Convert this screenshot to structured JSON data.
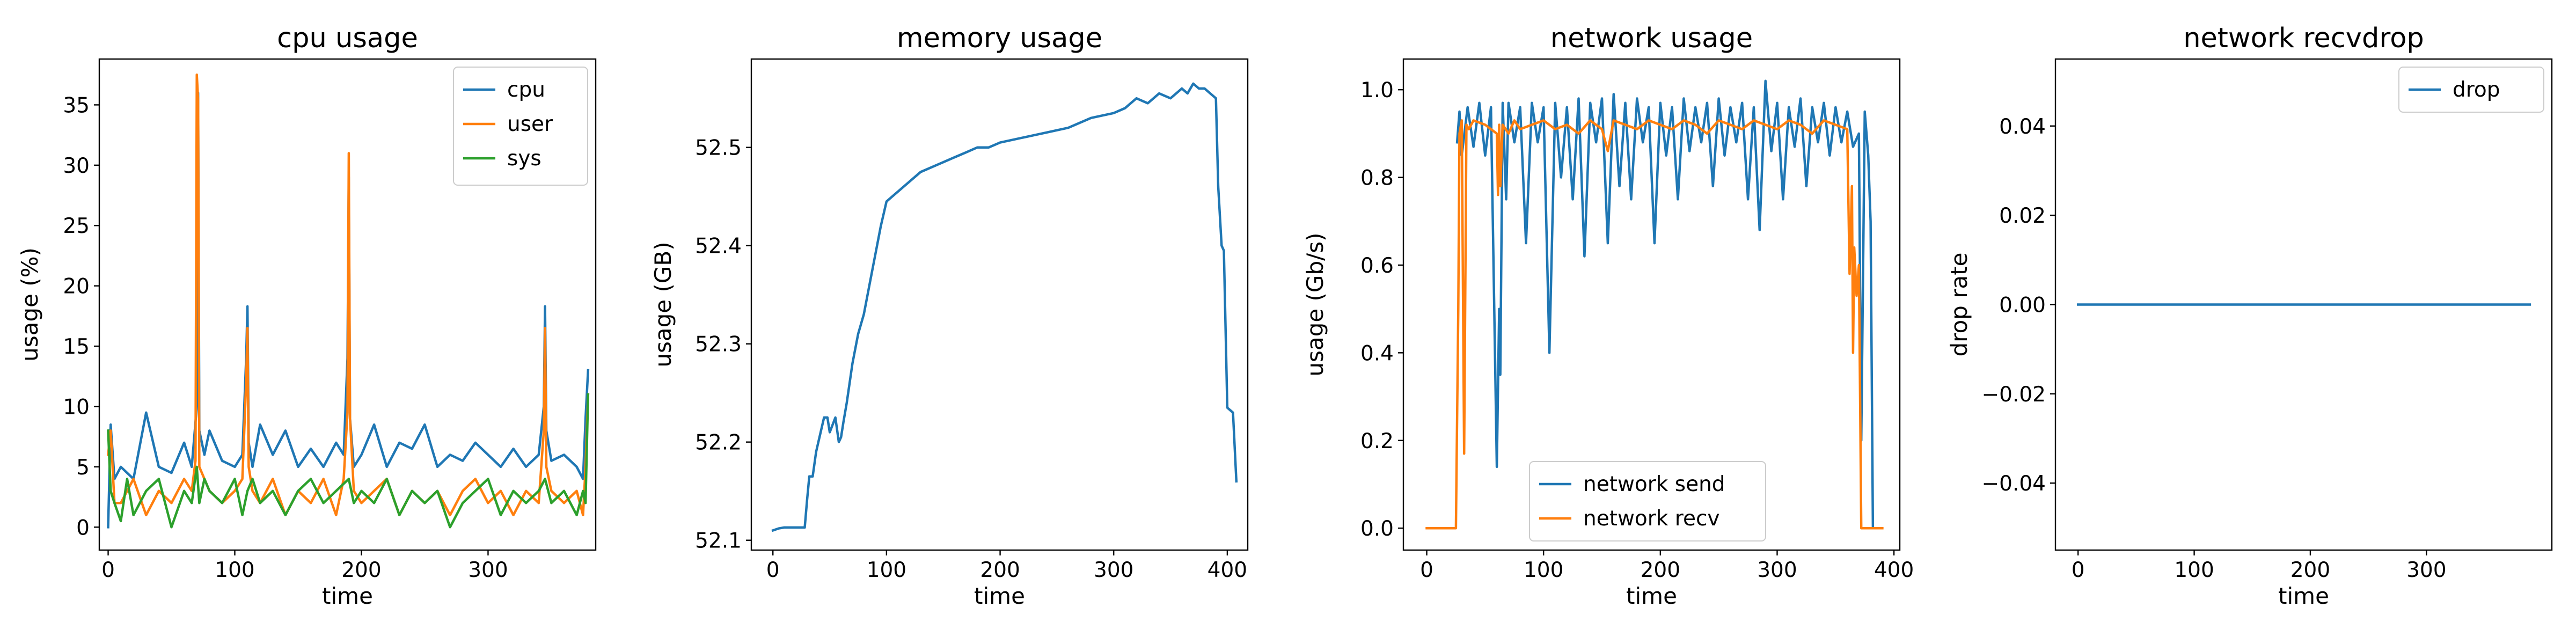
{
  "chart_data": [
    {
      "type": "line",
      "title": "cpu usage",
      "xlabel": "time",
      "ylabel": "usage (%)",
      "xlim": [
        -7,
        385
      ],
      "ylim": [
        -1.9,
        38.8
      ],
      "xticks": [
        0,
        100,
        200,
        300
      ],
      "yticks": [
        0,
        5,
        10,
        15,
        20,
        25,
        30,
        35
      ],
      "legend": "top-right",
      "colors": {
        "cpu": "#1f77b4",
        "user": "#ff7f0e",
        "sys": "#2ca02c"
      },
      "series": [
        {
          "name": "cpu",
          "x": [
            0,
            2,
            5,
            10,
            20,
            30,
            40,
            50,
            60,
            66,
            70,
            71,
            72,
            76,
            80,
            90,
            100,
            106,
            109,
            110,
            111,
            114,
            120,
            130,
            140,
            150,
            160,
            170,
            180,
            186,
            189,
            190,
            191,
            194,
            200,
            210,
            220,
            230,
            240,
            250,
            260,
            270,
            280,
            290,
            300,
            310,
            320,
            330,
            340,
            344,
            345,
            346,
            350,
            360,
            370,
            375,
            377,
            379
          ],
          "y": [
            0,
            8.5,
            4,
            5,
            4,
            9.5,
            5,
            4.5,
            7,
            5,
            10,
            36,
            8,
            6,
            8,
            5.5,
            5,
            6,
            14,
            18.3,
            7,
            5,
            8.5,
            6,
            8,
            5,
            6.5,
            5,
            7,
            6,
            14,
            29,
            9,
            5,
            6,
            8.5,
            5,
            7,
            6.5,
            8.5,
            5,
            6,
            5.5,
            7,
            6,
            5,
            6.5,
            5,
            6,
            10,
            18.3,
            8,
            5.5,
            6,
            5,
            4,
            9,
            13
          ]
        },
        {
          "name": "user",
          "x": [
            0,
            2,
            5,
            10,
            20,
            30,
            40,
            50,
            60,
            66,
            69,
            70,
            71,
            72,
            76,
            80,
            90,
            100,
            106,
            109,
            110,
            111,
            114,
            120,
            130,
            140,
            150,
            160,
            170,
            180,
            186,
            189,
            190,
            191,
            194,
            200,
            210,
            220,
            230,
            240,
            250,
            260,
            270,
            280,
            290,
            300,
            310,
            320,
            330,
            340,
            344,
            345,
            346,
            350,
            360,
            370,
            375,
            377,
            379
          ],
          "y": [
            6,
            8,
            2,
            2,
            4,
            1,
            3,
            2,
            4,
            3,
            5.5,
            37.5,
            35.5,
            5,
            4,
            3,
            2,
            3,
            4,
            12,
            16.5,
            5,
            3,
            2,
            4,
            1,
            3,
            2,
            4,
            1,
            4,
            9.5,
            31,
            9,
            3,
            2,
            3,
            4,
            1,
            3,
            2,
            3,
            1,
            3,
            4,
            2,
            3,
            1,
            3,
            2,
            8,
            16.5,
            5,
            3,
            2,
            3,
            1,
            5,
            11
          ]
        },
        {
          "name": "sys",
          "x": [
            0,
            2,
            5,
            10,
            15,
            20,
            30,
            40,
            50,
            60,
            66,
            70,
            72,
            76,
            80,
            90,
            100,
            106,
            110,
            114,
            120,
            130,
            140,
            150,
            160,
            170,
            180,
            190,
            194,
            200,
            210,
            220,
            230,
            240,
            250,
            260,
            270,
            280,
            290,
            300,
            310,
            320,
            330,
            340,
            345,
            350,
            360,
            370,
            375,
            377,
            379
          ],
          "y": [
            8,
            3,
            2,
            0.5,
            4,
            1,
            3,
            4,
            0,
            3,
            2,
            5,
            2,
            4,
            3,
            2,
            4,
            1,
            3,
            4,
            2,
            3,
            1,
            3,
            4,
            2,
            3,
            4,
            2,
            3,
            2,
            4,
            1,
            3,
            2,
            3,
            0,
            2,
            3,
            4,
            1,
            3,
            2,
            3,
            4,
            2,
            3,
            1,
            3,
            2,
            11
          ]
        }
      ]
    },
    {
      "type": "line",
      "title": "memory usage",
      "xlabel": "time",
      "ylabel": "usage (GB)",
      "xlim": [
        -19,
        418
      ],
      "ylim": [
        52.09,
        52.59
      ],
      "xticks": [
        0,
        100,
        200,
        300,
        400
      ],
      "yticks": [
        52.1,
        52.2,
        52.3,
        52.4,
        52.5
      ],
      "legend": "none",
      "colors": {
        "memory": "#1f77b4"
      },
      "series": [
        {
          "x": [
            0,
            5,
            10,
            20,
            28,
            30,
            32,
            35,
            38,
            40,
            45,
            48,
            50,
            55,
            58,
            60,
            62,
            65,
            70,
            75,
            80,
            85,
            90,
            95,
            100,
            105,
            110,
            120,
            130,
            140,
            150,
            160,
            170,
            180,
            190,
            200,
            220,
            240,
            260,
            280,
            300,
            310,
            320,
            330,
            340,
            350,
            360,
            365,
            370,
            375,
            380,
            385,
            390,
            392,
            395,
            397,
            400,
            405,
            408
          ],
          "y": [
            52.11,
            52.112,
            52.113,
            52.113,
            52.113,
            52.14,
            52.165,
            52.165,
            52.19,
            52.2,
            52.225,
            52.225,
            52.21,
            52.225,
            52.2,
            52.205,
            52.22,
            52.24,
            52.28,
            52.31,
            52.33,
            52.36,
            52.39,
            52.42,
            52.445,
            52.45,
            52.455,
            52.465,
            52.475,
            52.48,
            52.485,
            52.49,
            52.495,
            52.5,
            52.5,
            52.505,
            52.51,
            52.515,
            52.52,
            52.53,
            52.535,
            52.54,
            52.55,
            52.545,
            52.555,
            52.55,
            52.56,
            52.555,
            52.565,
            52.56,
            52.56,
            52.555,
            52.55,
            52.46,
            52.4,
            52.395,
            52.235,
            52.23,
            52.16
          ]
        }
      ]
    },
    {
      "type": "line",
      "title": "network usage",
      "xlabel": "time",
      "ylabel": "usage (Gb/s)",
      "xlim": [
        -20,
        405
      ],
      "ylim": [
        -0.05,
        1.07
      ],
      "xticks": [
        0,
        100,
        200,
        300,
        400
      ],
      "yticks": [
        0.0,
        0.2,
        0.4,
        0.6,
        0.8,
        1.0
      ],
      "legend": "bottom-center",
      "colors": {
        "network send": "#1f77b4",
        "network recv": "#ff7f0e"
      },
      "series": [
        {
          "name": "network send",
          "x": [
            26,
            28,
            30,
            35,
            40,
            45,
            50,
            55,
            60,
            62,
            63,
            65,
            68,
            70,
            75,
            80,
            85,
            90,
            95,
            100,
            105,
            110,
            115,
            120,
            125,
            130,
            135,
            140,
            145,
            150,
            155,
            160,
            165,
            170,
            175,
            180,
            185,
            190,
            195,
            200,
            205,
            210,
            215,
            220,
            225,
            230,
            235,
            240,
            245,
            250,
            255,
            260,
            265,
            270,
            275,
            280,
            285,
            290,
            295,
            300,
            305,
            310,
            315,
            320,
            325,
            330,
            335,
            340,
            345,
            350,
            355,
            360,
            365,
            370,
            372,
            375,
            378,
            380,
            382
          ],
          "y": [
            0.88,
            0.95,
            0.85,
            0.96,
            0.87,
            0.97,
            0.85,
            0.96,
            0.14,
            0.5,
            0.35,
            0.97,
            0.75,
            0.97,
            0.88,
            0.96,
            0.65,
            0.97,
            0.88,
            0.96,
            0.4,
            0.97,
            0.8,
            0.96,
            0.75,
            0.98,
            0.62,
            0.97,
            0.88,
            0.98,
            0.65,
            0.99,
            0.78,
            0.97,
            0.75,
            0.98,
            0.88,
            0.96,
            0.65,
            0.97,
            0.85,
            0.96,
            0.75,
            0.98,
            0.86,
            0.96,
            0.88,
            0.97,
            0.78,
            0.98,
            0.85,
            0.96,
            0.88,
            0.97,
            0.75,
            0.96,
            0.68,
            1.02,
            0.86,
            0.97,
            0.75,
            0.96,
            0.87,
            0.98,
            0.78,
            0.96,
            0.88,
            0.97,
            0.85,
            0.96,
            0.88,
            0.95,
            0.87,
            0.9,
            0.2,
            0.95,
            0.85,
            0.7,
            0.0
          ]
        },
        {
          "name": "network recv",
          "x": [
            0,
            10,
            20,
            25,
            27,
            28,
            30,
            32,
            34,
            36,
            40,
            50,
            60,
            61,
            62,
            63,
            65,
            70,
            75,
            80,
            90,
            100,
            110,
            120,
            130,
            140,
            150,
            155,
            160,
            170,
            180,
            190,
            200,
            210,
            220,
            230,
            240,
            250,
            260,
            270,
            280,
            290,
            300,
            310,
            320,
            330,
            340,
            350,
            360,
            362,
            364,
            365,
            366,
            368,
            370,
            372,
            375,
            380,
            385,
            390
          ],
          "y": [
            0.0,
            0.0,
            0.0,
            0.0,
            0.5,
            0.9,
            0.93,
            0.17,
            0.92,
            0.91,
            0.93,
            0.92,
            0.9,
            0.76,
            0.92,
            0.78,
            0.92,
            0.9,
            0.93,
            0.91,
            0.92,
            0.93,
            0.91,
            0.92,
            0.9,
            0.93,
            0.91,
            0.86,
            0.93,
            0.92,
            0.91,
            0.93,
            0.92,
            0.91,
            0.93,
            0.92,
            0.9,
            0.93,
            0.92,
            0.91,
            0.93,
            0.92,
            0.91,
            0.93,
            0.92,
            0.9,
            0.93,
            0.92,
            0.91,
            0.58,
            0.78,
            0.4,
            0.64,
            0.53,
            0.6,
            0.0,
            0.0,
            0.0,
            0.0,
            0.0
          ]
        }
      ]
    },
    {
      "type": "line",
      "title": "network recvdrop",
      "xlabel": "time",
      "ylabel": "drop rate",
      "xlim": [
        -19.5,
        408
      ],
      "ylim": [
        -0.055,
        0.055
      ],
      "xticks": [
        0,
        100,
        200,
        300
      ],
      "yticks": [
        -0.04,
        -0.02,
        0.0,
        0.02,
        0.04
      ],
      "legend": "top-right",
      "colors": {
        "drop": "#1f77b4"
      },
      "series": [
        {
          "name": "drop",
          "x": [
            0,
            389
          ],
          "y": [
            0,
            0
          ]
        }
      ]
    }
  ]
}
